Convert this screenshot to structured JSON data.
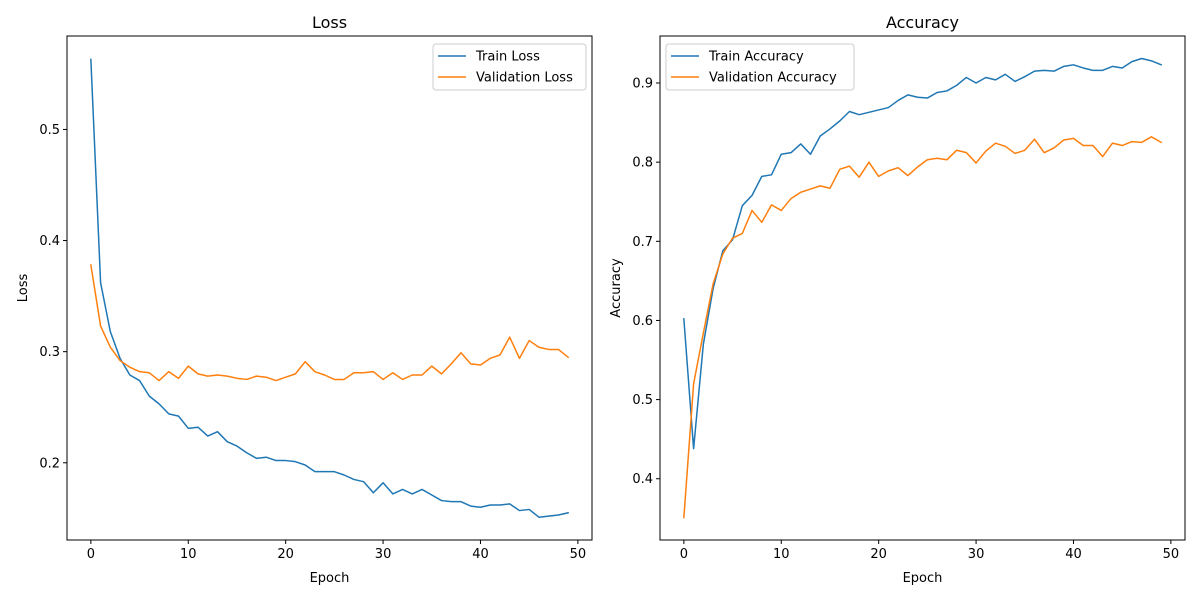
{
  "chart_data": [
    {
      "type": "line",
      "title": "Loss",
      "xlabel": "Epoch",
      "ylabel": "Loss",
      "xlim": [
        -2.45,
        51.45
      ],
      "ylim": [
        0.1305,
        0.5841
      ],
      "xticks": [
        0,
        10,
        20,
        30,
        40,
        50
      ],
      "xtick_labels": [
        "0",
        "10",
        "20",
        "30",
        "40",
        "50"
      ],
      "yticks": [
        0.2,
        0.3,
        0.4,
        0.5
      ],
      "ytick_labels": [
        "0.2",
        "0.3",
        "0.4",
        "0.5"
      ],
      "grid": false,
      "legend_position": "top-right",
      "series": [
        {
          "name": "Train Loss",
          "color": "#1f77b4",
          "x": [
            0,
            1,
            2,
            3,
            4,
            5,
            6,
            7,
            8,
            9,
            10,
            11,
            12,
            13,
            14,
            15,
            16,
            17,
            18,
            19,
            20,
            21,
            22,
            23,
            24,
            25,
            26,
            27,
            28,
            29,
            30,
            31,
            32,
            33,
            34,
            35,
            36,
            37,
            38,
            39,
            40,
            41,
            42,
            43,
            44,
            45,
            46,
            47,
            48,
            49
          ],
          "values": [
            0.563,
            0.362,
            0.318,
            0.294,
            0.279,
            0.274,
            0.26,
            0.253,
            0.244,
            0.242,
            0.231,
            0.232,
            0.224,
            0.228,
            0.219,
            0.215,
            0.209,
            0.204,
            0.205,
            0.202,
            0.202,
            0.201,
            0.198,
            0.192,
            0.192,
            0.192,
            0.189,
            0.185,
            0.183,
            0.173,
            0.182,
            0.172,
            0.176,
            0.172,
            0.176,
            0.171,
            0.166,
            0.165,
            0.165,
            0.161,
            0.16,
            0.162,
            0.162,
            0.163,
            0.157,
            0.158,
            0.151,
            0.152,
            0.153,
            0.155
          ]
        },
        {
          "name": "Validation Loss",
          "color": "#ff7f0e",
          "x": [
            0,
            1,
            2,
            3,
            4,
            5,
            6,
            7,
            8,
            9,
            10,
            11,
            12,
            13,
            14,
            15,
            16,
            17,
            18,
            19,
            20,
            21,
            22,
            23,
            24,
            25,
            26,
            27,
            28,
            29,
            30,
            31,
            32,
            33,
            34,
            35,
            36,
            37,
            38,
            39,
            40,
            41,
            42,
            43,
            44,
            45,
            46,
            47,
            48,
            49
          ],
          "values": [
            0.378,
            0.323,
            0.304,
            0.292,
            0.286,
            0.282,
            0.281,
            0.274,
            0.282,
            0.276,
            0.287,
            0.28,
            0.278,
            0.279,
            0.278,
            0.276,
            0.275,
            0.278,
            0.277,
            0.274,
            0.277,
            0.28,
            0.291,
            0.282,
            0.279,
            0.275,
            0.275,
            0.281,
            0.281,
            0.282,
            0.275,
            0.281,
            0.275,
            0.279,
            0.279,
            0.287,
            0.28,
            0.289,
            0.299,
            0.289,
            0.288,
            0.294,
            0.297,
            0.313,
            0.294,
            0.31,
            0.304,
            0.302,
            0.302,
            0.295
          ]
        }
      ]
    },
    {
      "type": "line",
      "title": "Accuracy",
      "xlabel": "Epoch",
      "ylabel": "Accuracy",
      "xlim": [
        -2.45,
        51.45
      ],
      "ylim": [
        0.3226,
        0.9594
      ],
      "xticks": [
        0,
        10,
        20,
        30,
        40,
        50
      ],
      "xtick_labels": [
        "0",
        "10",
        "20",
        "30",
        "40",
        "50"
      ],
      "yticks": [
        0.4,
        0.5,
        0.6,
        0.7,
        0.8,
        0.9
      ],
      "ytick_labels": [
        "0.4",
        "0.5",
        "0.6",
        "0.7",
        "0.8",
        "0.9"
      ],
      "grid": false,
      "legend_position": "top-left",
      "series": [
        {
          "name": "Train Accuracy",
          "color": "#1f77b4",
          "x": [
            0,
            1,
            2,
            3,
            4,
            5,
            6,
            7,
            8,
            9,
            10,
            11,
            12,
            13,
            14,
            15,
            16,
            17,
            18,
            19,
            20,
            21,
            22,
            23,
            24,
            25,
            26,
            27,
            28,
            29,
            30,
            31,
            32,
            33,
            34,
            35,
            36,
            37,
            38,
            39,
            40,
            41,
            42,
            43,
            44,
            45,
            46,
            47,
            48,
            49
          ],
          "values": [
            0.602,
            0.438,
            0.57,
            0.64,
            0.688,
            0.702,
            0.745,
            0.758,
            0.782,
            0.784,
            0.81,
            0.812,
            0.823,
            0.81,
            0.833,
            0.842,
            0.852,
            0.864,
            0.86,
            0.863,
            0.866,
            0.869,
            0.878,
            0.885,
            0.882,
            0.881,
            0.888,
            0.89,
            0.897,
            0.907,
            0.9,
            0.907,
            0.904,
            0.911,
            0.902,
            0.908,
            0.915,
            0.916,
            0.915,
            0.921,
            0.923,
            0.919,
            0.916,
            0.916,
            0.921,
            0.919,
            0.927,
            0.931,
            0.928,
            0.923
          ]
        },
        {
          "name": "Validation Accuracy",
          "color": "#ff7f0e",
          "x": [
            0,
            1,
            2,
            3,
            4,
            5,
            6,
            7,
            8,
            9,
            10,
            11,
            12,
            13,
            14,
            15,
            16,
            17,
            18,
            19,
            20,
            21,
            22,
            23,
            24,
            25,
            26,
            27,
            28,
            29,
            30,
            31,
            32,
            33,
            34,
            35,
            36,
            37,
            38,
            39,
            40,
            41,
            42,
            43,
            44,
            45,
            46,
            47,
            48,
            49
          ],
          "values": [
            0.351,
            0.52,
            0.584,
            0.646,
            0.684,
            0.704,
            0.71,
            0.739,
            0.724,
            0.746,
            0.739,
            0.754,
            0.762,
            0.766,
            0.77,
            0.767,
            0.791,
            0.795,
            0.781,
            0.8,
            0.782,
            0.789,
            0.793,
            0.783,
            0.794,
            0.803,
            0.805,
            0.803,
            0.815,
            0.812,
            0.799,
            0.814,
            0.824,
            0.82,
            0.811,
            0.815,
            0.829,
            0.812,
            0.818,
            0.828,
            0.83,
            0.821,
            0.821,
            0.807,
            0.824,
            0.821,
            0.826,
            0.825,
            0.832,
            0.825
          ]
        }
      ]
    }
  ]
}
